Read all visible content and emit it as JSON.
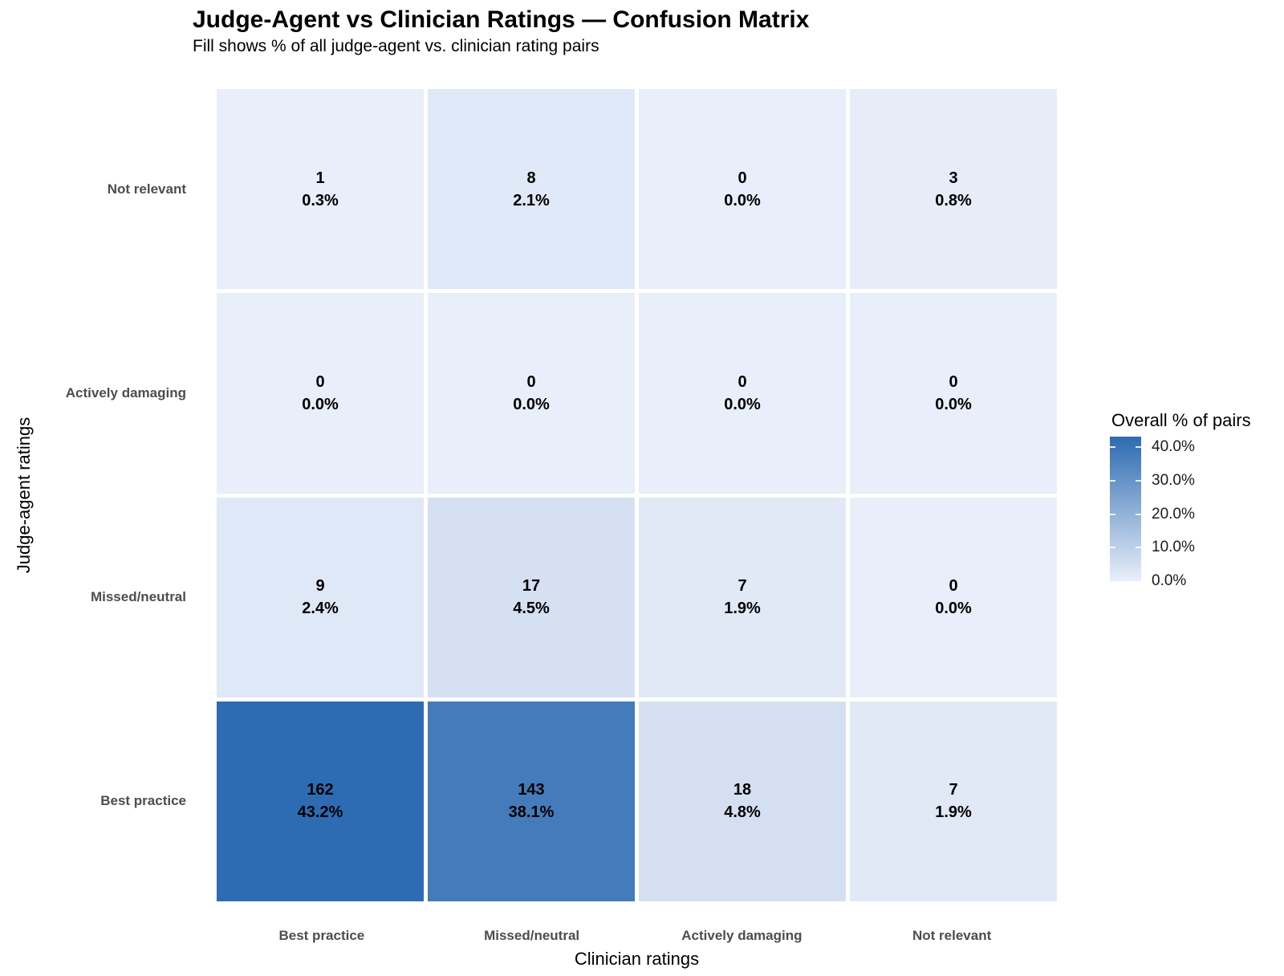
{
  "chart_data": {
    "type": "heatmap",
    "title": "Judge-Agent vs Clinician Ratings — Confusion Matrix",
    "subtitle": "Fill shows % of all judge-agent vs. clinician rating pairs",
    "xlabel": "Clinician ratings",
    "ylabel": "Judge-agent ratings",
    "x_categories": [
      "Best practice",
      "Missed/neutral",
      "Actively damaging",
      "Not relevant"
    ],
    "y_categories_top_to_bottom": [
      "Not relevant",
      "Actively damaging",
      "Missed/neutral",
      "Best practice"
    ],
    "rows": [
      {
        "label": "Not relevant",
        "cells": [
          {
            "count": "1",
            "pct": "0.3%",
            "pct_value": 0.3
          },
          {
            "count": "8",
            "pct": "2.1%",
            "pct_value": 2.1
          },
          {
            "count": "0",
            "pct": "0.0%",
            "pct_value": 0.0
          },
          {
            "count": "3",
            "pct": "0.8%",
            "pct_value": 0.8
          }
        ]
      },
      {
        "label": "Actively damaging",
        "cells": [
          {
            "count": "0",
            "pct": "0.0%",
            "pct_value": 0.0
          },
          {
            "count": "0",
            "pct": "0.0%",
            "pct_value": 0.0
          },
          {
            "count": "0",
            "pct": "0.0%",
            "pct_value": 0.0
          },
          {
            "count": "0",
            "pct": "0.0%",
            "pct_value": 0.0
          }
        ]
      },
      {
        "label": "Missed/neutral",
        "cells": [
          {
            "count": "9",
            "pct": "2.4%",
            "pct_value": 2.4
          },
          {
            "count": "17",
            "pct": "4.5%",
            "pct_value": 4.5
          },
          {
            "count": "7",
            "pct": "1.9%",
            "pct_value": 1.9
          },
          {
            "count": "0",
            "pct": "0.0%",
            "pct_value": 0.0
          }
        ]
      },
      {
        "label": "Best practice",
        "cells": [
          {
            "count": "162",
            "pct": "43.2%",
            "pct_value": 43.2
          },
          {
            "count": "143",
            "pct": "38.1%",
            "pct_value": 38.1
          },
          {
            "count": "18",
            "pct": "4.8%",
            "pct_value": 4.8
          },
          {
            "count": "7",
            "pct": "1.9%",
            "pct_value": 1.9
          }
        ]
      }
    ],
    "legend": {
      "title": "Overall % of pairs",
      "position": "right",
      "ticks": [
        {
          "label": "40.0%",
          "value": 40
        },
        {
          "label": "30.0%",
          "value": 30
        },
        {
          "label": "20.0%",
          "value": 20
        },
        {
          "label": "10.0%",
          "value": 10
        },
        {
          "label": "0.0%",
          "value": 0
        }
      ],
      "min_value": 0,
      "max_value": 43.2,
      "low_color": "#e9effa",
      "high_color": "#2d6bb2"
    },
    "colors": {
      "background": "#ffffff",
      "cell_gap": "#ffffff",
      "axis_tick_label": "#4d4d4d",
      "cell_text": "#000000"
    }
  }
}
